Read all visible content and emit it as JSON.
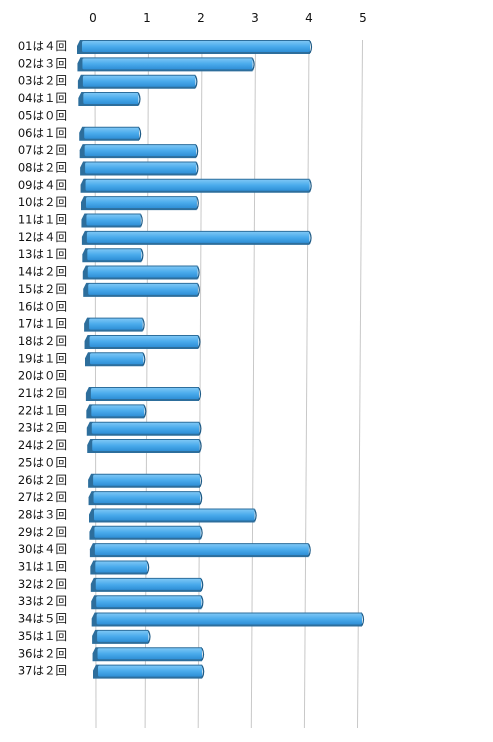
{
  "chart_data": {
    "type": "bar",
    "orientation": "horizontal",
    "categories": [
      "01は４回",
      "02は３回",
      "03は２回",
      "04は１回",
      "05は０回",
      "06は１回",
      "07は２回",
      "08は２回",
      "09は４回",
      "10は２回",
      "11は１回",
      "12は４回",
      "13は１回",
      "14は２回",
      "15は２回",
      "16は０回",
      "17は１回",
      "18は２回",
      "19は１回",
      "20は０回",
      "21は２回",
      "22は１回",
      "23は２回",
      "24は２回",
      "25は０回",
      "26は２回",
      "27は２回",
      "28は３回",
      "29は２回",
      "30は４回",
      "31は１回",
      "32は２回",
      "33は２回",
      "34は５回",
      "35は１回",
      "36は２回",
      "37は２回"
    ],
    "values": [
      4,
      3,
      2,
      1,
      0,
      1,
      2,
      2,
      4,
      2,
      1,
      4,
      1,
      2,
      2,
      0,
      1,
      2,
      1,
      0,
      2,
      1,
      2,
      2,
      0,
      2,
      2,
      3,
      2,
      4,
      1,
      2,
      2,
      5,
      1,
      2,
      2
    ],
    "x_ticks": [
      "0",
      "1",
      "2",
      "3",
      "4",
      "5"
    ],
    "xlim": [
      0,
      5
    ],
    "grid": true,
    "style": "3d-perspective",
    "colors": {
      "bar_face": "#4aabec",
      "bar_shadow": "#2d6e9c",
      "grid": "#c8c8c8",
      "text": "#111111"
    }
  }
}
